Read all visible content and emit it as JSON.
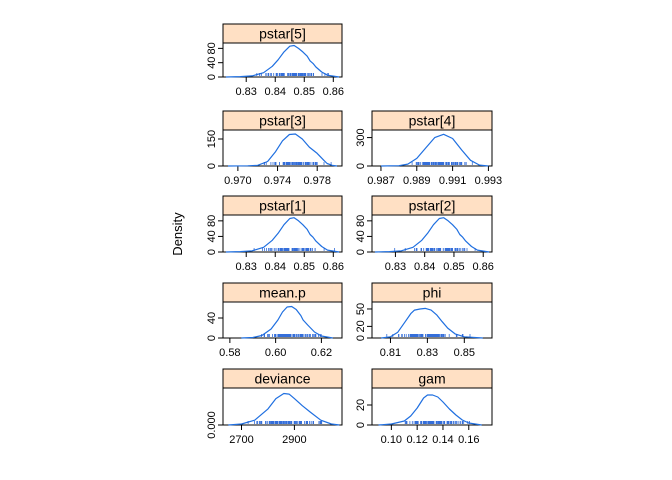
{
  "figure": {
    "ylabel": "Density",
    "strip_color": "#ffe0c4",
    "line_color": "#1f6fe0",
    "rug_color": "#1f5fd6"
  },
  "chart_data": [
    {
      "type": "line",
      "title": "pstar[5]",
      "x_ticks": [
        "0.83",
        "0.84",
        "0.85",
        "0.86"
      ],
      "x_tick_values": [
        0.83,
        0.84,
        0.85,
        0.86
      ],
      "y_ticks": [
        "0",
        "40",
        "80"
      ],
      "y_tick_values": [
        0,
        40,
        80
      ],
      "xlim": [
        0.822,
        0.863
      ],
      "ylim": [
        0,
        95
      ],
      "x": [
        0.823,
        0.828,
        0.832,
        0.836,
        0.839,
        0.841,
        0.843,
        0.845,
        0.8465,
        0.848,
        0.8495,
        0.851,
        0.852,
        0.853,
        0.854,
        0.856,
        0.858,
        0.862
      ],
      "y": [
        0,
        1,
        3,
        12,
        30,
        48,
        70,
        86,
        88,
        80,
        70,
        58,
        45,
        38,
        28,
        14,
        5,
        0
      ]
    },
    {
      "type": "line",
      "title": "pstar[3]",
      "x_ticks": [
        "0.970",
        "0.974",
        "0.978"
      ],
      "x_tick_values": [
        0.97,
        0.974,
        0.978
      ],
      "y_ticks": [
        "0",
        "150"
      ],
      "y_tick_values": [
        0,
        150
      ],
      "xlim": [
        0.9685,
        0.9805
      ],
      "ylim": [
        0,
        200
      ],
      "x": [
        0.969,
        0.971,
        0.972,
        0.973,
        0.9738,
        0.9745,
        0.9752,
        0.9758,
        0.9765,
        0.9772,
        0.978,
        0.9787,
        0.979,
        0.9795,
        0.98
      ],
      "y": [
        0,
        1,
        4,
        25,
        80,
        140,
        175,
        178,
        150,
        105,
        70,
        30,
        14,
        4,
        0
      ]
    },
    {
      "type": "line",
      "title": "pstar[4]",
      "x_ticks": [
        "0.987",
        "0.989",
        "0.991",
        "0.993"
      ],
      "x_tick_values": [
        0.987,
        0.989,
        0.991,
        0.993
      ],
      "y_ticks": [
        "0",
        "300"
      ],
      "y_tick_values": [
        0,
        300
      ],
      "xlim": [
        0.9865,
        0.9932
      ],
      "ylim": [
        0,
        380
      ],
      "x": [
        0.987,
        0.988,
        0.9885,
        0.989,
        0.9895,
        0.99,
        0.9905,
        0.991,
        0.9915,
        0.992,
        0.9925,
        0.993
      ],
      "y": [
        0,
        3,
        20,
        80,
        190,
        300,
        335,
        290,
        170,
        60,
        10,
        0
      ]
    },
    {
      "type": "line",
      "title": "pstar[1]",
      "x_ticks": [
        "0.83",
        "0.84",
        "0.85",
        "0.86"
      ],
      "x_tick_values": [
        0.83,
        0.84,
        0.85,
        0.86
      ],
      "y_ticks": [
        "0",
        "40",
        "80"
      ],
      "y_tick_values": [
        0,
        40,
        80
      ],
      "xlim": [
        0.822,
        0.863
      ],
      "ylim": [
        0,
        95
      ],
      "x": [
        0.823,
        0.828,
        0.832,
        0.836,
        0.839,
        0.841,
        0.843,
        0.845,
        0.8465,
        0.848,
        0.8495,
        0.851,
        0.852,
        0.853,
        0.854,
        0.856,
        0.858,
        0.862
      ],
      "y": [
        0,
        1,
        3,
        12,
        30,
        48,
        70,
        86,
        88,
        80,
        70,
        58,
        45,
        38,
        28,
        14,
        5,
        0
      ]
    },
    {
      "type": "line",
      "title": "pstar[2]",
      "x_ticks": [
        "0.83",
        "0.84",
        "0.85",
        "0.86"
      ],
      "x_tick_values": [
        0.83,
        0.84,
        0.85,
        0.86
      ],
      "y_ticks": [
        "0",
        "40",
        "80"
      ],
      "y_tick_values": [
        0,
        40,
        80
      ],
      "xlim": [
        0.822,
        0.863
      ],
      "ylim": [
        0,
        95
      ],
      "x": [
        0.823,
        0.828,
        0.832,
        0.836,
        0.839,
        0.841,
        0.843,
        0.845,
        0.8465,
        0.848,
        0.8495,
        0.851,
        0.852,
        0.853,
        0.854,
        0.856,
        0.858,
        0.862
      ],
      "y": [
        0,
        1,
        3,
        12,
        30,
        48,
        70,
        86,
        88,
        80,
        70,
        58,
        45,
        38,
        28,
        14,
        5,
        0
      ]
    },
    {
      "type": "line",
      "title": "mean.p",
      "x_ticks": [
        "0.58",
        "0.60",
        "0.62"
      ],
      "x_tick_values": [
        0.58,
        0.6,
        0.62
      ],
      "y_ticks": [
        "0",
        "40"
      ],
      "y_tick_values": [
        0,
        40
      ],
      "xlim": [
        0.577,
        0.629
      ],
      "ylim": [
        0,
        72
      ],
      "x": [
        0.585,
        0.59,
        0.594,
        0.598,
        0.601,
        0.603,
        0.605,
        0.607,
        0.609,
        0.611,
        0.612,
        0.614,
        0.617,
        0.62,
        0.625
      ],
      "y": [
        0,
        1,
        5,
        18,
        36,
        52,
        62,
        63,
        57,
        45,
        36,
        26,
        12,
        4,
        0
      ]
    },
    {
      "type": "line",
      "title": "phi",
      "x_ticks": [
        "0.81",
        "0.83",
        "0.85"
      ],
      "x_tick_values": [
        0.81,
        0.83,
        0.85
      ],
      "y_ticks": [
        "0",
        "20",
        "50"
      ],
      "y_tick_values": [
        0,
        20,
        50
      ],
      "xlim": [
        0.8,
        0.865
      ],
      "ylim": [
        0,
        62
      ],
      "x": [
        0.805,
        0.81,
        0.814,
        0.818,
        0.821,
        0.823,
        0.826,
        0.829,
        0.832,
        0.835,
        0.838,
        0.841,
        0.845,
        0.85,
        0.86
      ],
      "y": [
        0,
        2,
        10,
        28,
        42,
        48,
        50,
        51,
        48,
        40,
        28,
        17,
        7,
        2,
        0
      ]
    },
    {
      "type": "line",
      "title": "deviance",
      "x_ticks": [
        "2700",
        "2900"
      ],
      "x_tick_values": [
        2700,
        2900
      ],
      "y_ticks": [
        "0.000"
      ],
      "y_tick_values": [
        0
      ],
      "xlim": [
        2630,
        3080
      ],
      "ylim": [
        0,
        0.0115
      ],
      "x": [
        2650,
        2700,
        2750,
        2800,
        2830,
        2860,
        2880,
        2900,
        2930,
        2960,
        3000,
        3040,
        3070
      ],
      "y": [
        0,
        0.0003,
        0.0015,
        0.005,
        0.0082,
        0.0098,
        0.0096,
        0.0082,
        0.006,
        0.004,
        0.0015,
        0.0003,
        0
      ]
    },
    {
      "type": "line",
      "title": "gam",
      "x_ticks": [
        "0.10",
        "0.12",
        "0.14",
        "0.16"
      ],
      "x_tick_values": [
        0.1,
        0.12,
        0.14,
        0.16
      ],
      "y_ticks": [
        "0",
        "20"
      ],
      "y_tick_values": [
        0,
        20
      ],
      "xlim": [
        0.085,
        0.178
      ],
      "ylim": [
        0,
        37
      ],
      "x": [
        0.09,
        0.1,
        0.11,
        0.115,
        0.12,
        0.125,
        0.128,
        0.132,
        0.136,
        0.14,
        0.145,
        0.15,
        0.155,
        0.16,
        0.17
      ],
      "y": [
        0,
        1,
        4,
        9,
        17,
        27,
        30,
        30,
        28,
        23,
        16,
        10,
        5,
        2,
        0
      ]
    }
  ]
}
